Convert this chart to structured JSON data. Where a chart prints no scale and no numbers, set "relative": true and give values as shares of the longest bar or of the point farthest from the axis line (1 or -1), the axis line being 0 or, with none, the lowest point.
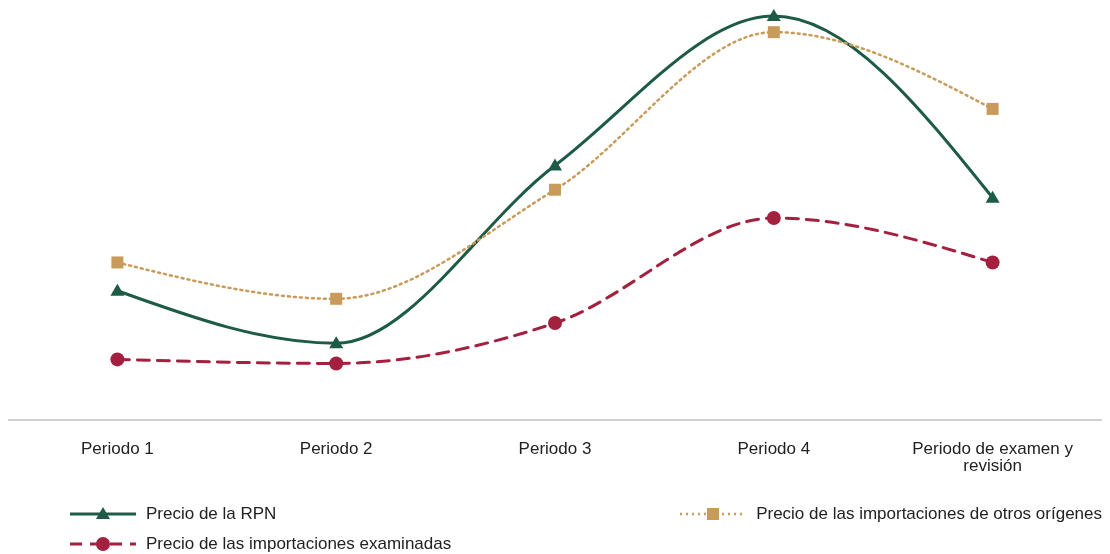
{
  "chart_data": {
    "type": "line",
    "relative": true,
    "categories": [
      "Periodo 1",
      "Periodo 2",
      "Periodo 3",
      "Periodo 4",
      "Periodo de examen y revisión"
    ],
    "legend": "bottom",
    "grid": false,
    "series": [
      {
        "name": "Precio de la RPN",
        "color": "#1e5b46",
        "marker": "triangle",
        "line_style": "solid",
        "values": [
          0.32,
          0.19,
          0.63,
          1,
          0.55
        ]
      },
      {
        "name": "Precio de las importaciones de otros orígenes",
        "color": "#c89b5a",
        "marker": "square",
        "line_style": "dotted",
        "values": [
          0.39,
          0.3,
          0.57,
          0.96,
          0.77
        ]
      },
      {
        "name": "Precio de las importaciones examinadas",
        "color": "#a3203f",
        "marker": "circle",
        "line_style": "dashed",
        "values": [
          0.15,
          0.14,
          0.24,
          0.5,
          0.39
        ]
      }
    ]
  }
}
